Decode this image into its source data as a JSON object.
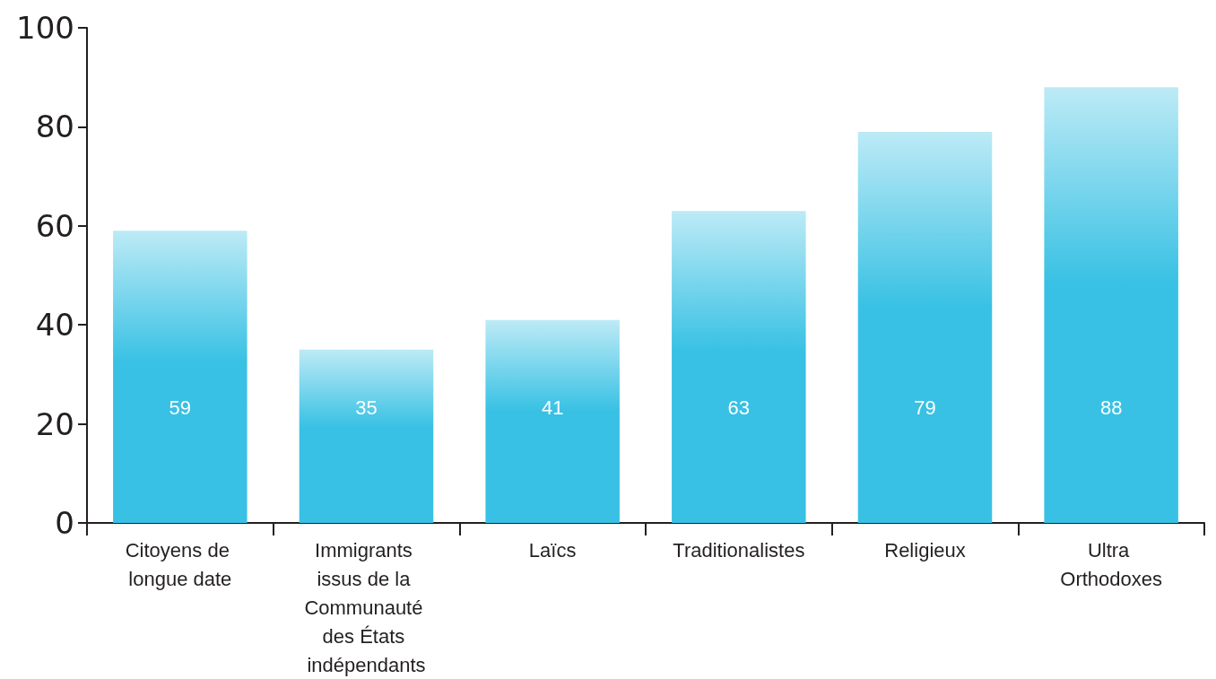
{
  "chart_data": {
    "type": "bar",
    "categories": [
      "Citoyens de longue date",
      "Immigrants issus de la Communauté des États indépendants",
      "Laïcs",
      "Traditionalistes",
      "Religieux",
      "Ultra Orthodoxes"
    ],
    "values": [
      59,
      35,
      41,
      63,
      79,
      88
    ],
    "color": "#38c1e4",
    "ylim": [
      0,
      100
    ],
    "yticks": [
      0,
      20,
      40,
      60,
      80,
      100
    ],
    "grid": false,
    "data_labels": true
  }
}
